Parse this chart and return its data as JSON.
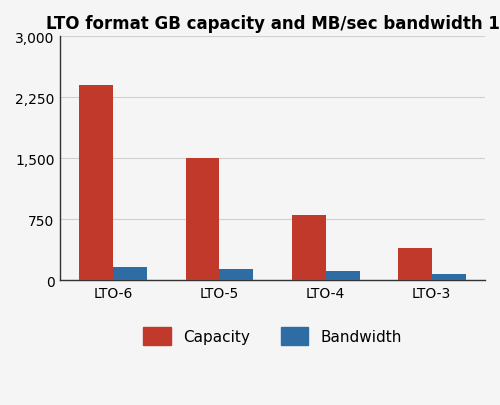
{
  "title": "LTO format GB capacity and MB/sec bandwidth 1",
  "categories": [
    "LTO-6",
    "LTO-5",
    "LTO-4",
    "LTO-3"
  ],
  "capacity": [
    2400,
    1500,
    800,
    400
  ],
  "bandwidth": [
    160,
    140,
    120,
    80
  ],
  "capacity_color": "#c0392b",
  "bandwidth_color": "#2e6da4",
  "ylim": [
    0,
    3000
  ],
  "yticks": [
    0,
    750,
    1500,
    2250,
    3000
  ],
  "ytick_labels": [
    "0",
    "750",
    "1,500",
    "2,250",
    "3,000"
  ],
  "title_fontsize": 12,
  "tick_fontsize": 10,
  "legend_fontsize": 11,
  "bar_width": 0.32,
  "background_color": "#f5f5f5",
  "grid_color": "#d0d0d0"
}
